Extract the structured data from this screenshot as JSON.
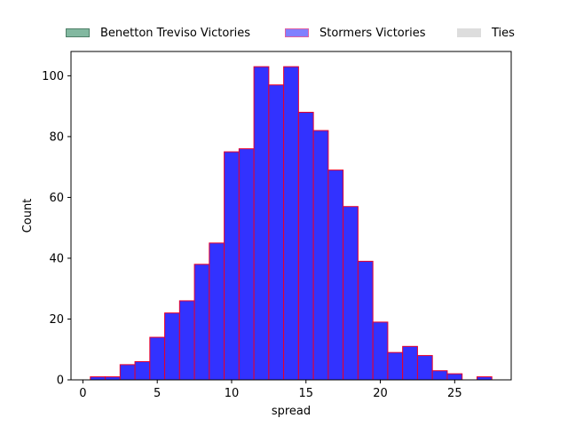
{
  "chart_data": {
    "type": "bar",
    "subtype": "histogram",
    "xlabel": "spread",
    "ylabel": "Count",
    "xlim": [
      -0.8,
      28.8
    ],
    "ylim": [
      0,
      108
    ],
    "xticks": [
      0,
      5,
      10,
      15,
      20,
      25
    ],
    "yticks": [
      0,
      20,
      40,
      60,
      80,
      100
    ],
    "bin_width": 1,
    "bins_start": [
      1,
      2,
      3,
      4,
      5,
      6,
      7,
      8,
      9,
      10,
      11,
      12,
      13,
      14,
      15,
      16,
      17,
      18,
      19,
      20,
      21,
      22,
      23,
      24,
      25,
      26,
      27
    ],
    "series": [
      {
        "name": "Stormers Victories",
        "color": "#3232FF",
        "edgecolor": "#E8002A",
        "values": [
          1,
          1,
          5,
          6,
          14,
          22,
          26,
          38,
          45,
          75,
          76,
          103,
          97,
          103,
          88,
          82,
          69,
          57,
          39,
          19,
          9,
          11,
          8,
          3,
          2,
          0,
          1
        ]
      }
    ],
    "legend": {
      "placement": "top",
      "entries": [
        {
          "label": "Benetton Treviso Victories",
          "color": "#82B8A0",
          "edgecolor": "#4F7F68"
        },
        {
          "label": "Stormers Victories",
          "color": "#8080FF",
          "edgecolor": "#E060A0"
        },
        {
          "label": "Ties",
          "color": "#DDDDDD",
          "edgecolor": "#DDDDDD"
        }
      ]
    },
    "grid": false
  }
}
